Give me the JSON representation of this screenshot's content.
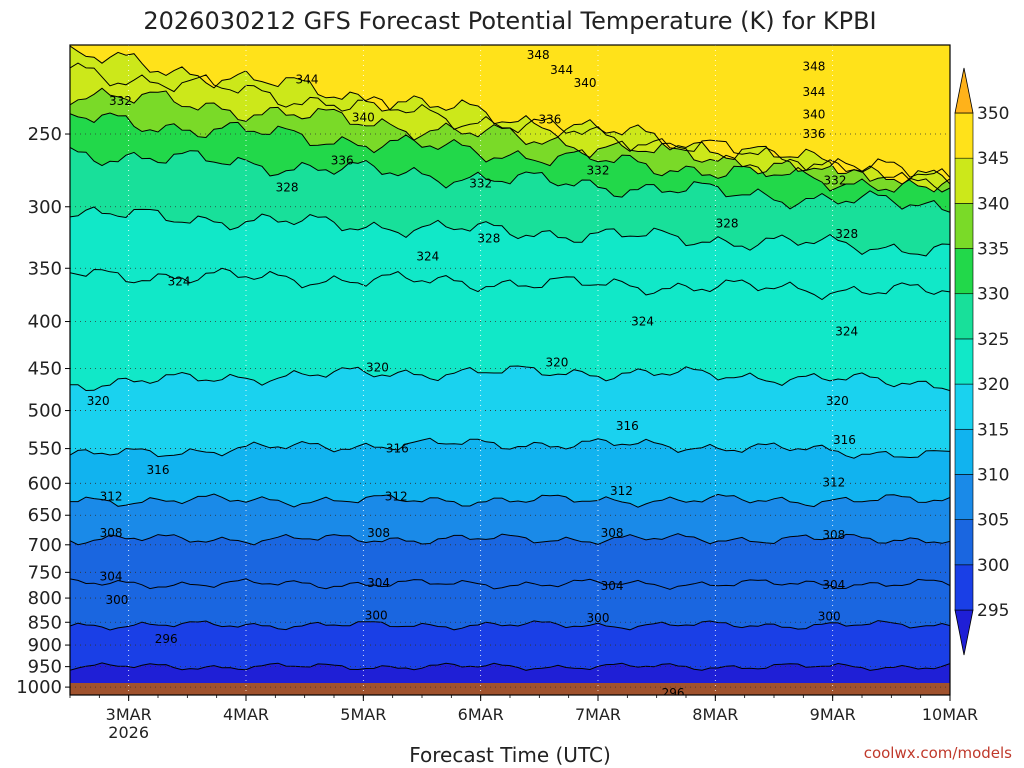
{
  "chart_data": {
    "type": "heatmap",
    "title": "2026030212 GFS Forecast Potential Temperature (K) for KPBI",
    "xlabel": "Forecast Time (UTC)",
    "ylabel": "",
    "x_ticks": [
      {
        "label": "3MAR",
        "sub": "2026",
        "day": 3
      },
      {
        "label": "4MAR",
        "sub": "",
        "day": 4
      },
      {
        "label": "5MAR",
        "sub": "",
        "day": 5
      },
      {
        "label": "6MAR",
        "sub": "",
        "day": 6
      },
      {
        "label": "7MAR",
        "sub": "",
        "day": 7
      },
      {
        "label": "8MAR",
        "sub": "",
        "day": 8
      },
      {
        "label": "9MAR",
        "sub": "",
        "day": 9
      },
      {
        "label": "10MAR",
        "sub": "",
        "day": 10
      }
    ],
    "x_range_days": [
      2.5,
      10.0
    ],
    "y_ticks": [
      "250",
      "300",
      "350",
      "400",
      "450",
      "500",
      "550",
      "600",
      "650",
      "700",
      "750",
      "800",
      "850",
      "900",
      "950",
      "1000"
    ],
    "y_range": [
      1020,
      200
    ],
    "colorbar": {
      "levels": [
        "295",
        "300",
        "305",
        "310",
        "315",
        "320",
        "325",
        "330",
        "335",
        "340",
        "345",
        "350"
      ],
      "colors": [
        "#1f1fd6",
        "#1a3fe6",
        "#1a66e0",
        "#1a8ae8",
        "#11b3ef",
        "#1ad2ef",
        "#11e8c8",
        "#18e09a",
        "#22d84a",
        "#7ada28",
        "#cce81a",
        "#ffe21a",
        "#ffb21a"
      ]
    },
    "contour_levels": [
      {
        "value": 296,
        "p": 950
      },
      {
        "value": 300,
        "p": 856
      },
      {
        "value": 304,
        "p": 772
      },
      {
        "value": 308,
        "p": 690
      },
      {
        "value": 312,
        "p": 626
      },
      {
        "value": 316,
        "p": 560
      },
      {
        "value": 320,
        "p": 468
      },
      {
        "value": 324,
        "p": 355
      },
      {
        "value": 328,
        "p": 305
      },
      {
        "value": 332,
        "p": 262
      },
      {
        "value": 336,
        "p": 240
      },
      {
        "value": 340,
        "p": 225
      },
      {
        "value": 344,
        "p": 213
      },
      {
        "value": 348,
        "p": 205
      }
    ],
    "contour_labels": [
      {
        "text": "332",
        "x": 2.93,
        "p": 230
      },
      {
        "text": "344",
        "x": 4.52,
        "p": 218
      },
      {
        "text": "348",
        "x": 6.49,
        "p": 205
      },
      {
        "text": "344",
        "x": 6.69,
        "p": 213
      },
      {
        "text": "340",
        "x": 6.89,
        "p": 220
      },
      {
        "text": "348",
        "x": 8.84,
        "p": 211
      },
      {
        "text": "344",
        "x": 8.84,
        "p": 225
      },
      {
        "text": "340",
        "x": 8.84,
        "p": 238
      },
      {
        "text": "336",
        "x": 8.84,
        "p": 250
      },
      {
        "text": "340",
        "x": 5.0,
        "p": 240
      },
      {
        "text": "336",
        "x": 6.59,
        "p": 241
      },
      {
        "text": "336",
        "x": 4.82,
        "p": 267
      },
      {
        "text": "332",
        "x": 6.0,
        "p": 283
      },
      {
        "text": "332",
        "x": 7.0,
        "p": 274
      },
      {
        "text": "332",
        "x": 9.02,
        "p": 281
      },
      {
        "text": "328",
        "x": 4.35,
        "p": 286
      },
      {
        "text": "328",
        "x": 6.07,
        "p": 325
      },
      {
        "text": "328",
        "x": 8.1,
        "p": 313
      },
      {
        "text": "328",
        "x": 9.12,
        "p": 321
      },
      {
        "text": "324",
        "x": 3.43,
        "p": 362
      },
      {
        "text": "324",
        "x": 5.55,
        "p": 340
      },
      {
        "text": "324",
        "x": 7.38,
        "p": 400
      },
      {
        "text": "324",
        "x": 9.12,
        "p": 410
      },
      {
        "text": "320",
        "x": 2.74,
        "p": 488
      },
      {
        "text": "320",
        "x": 5.12,
        "p": 449
      },
      {
        "text": "320",
        "x": 6.65,
        "p": 443
      },
      {
        "text": "320",
        "x": 9.04,
        "p": 488
      },
      {
        "text": "316",
        "x": 3.25,
        "p": 580
      },
      {
        "text": "316",
        "x": 5.29,
        "p": 550
      },
      {
        "text": "316",
        "x": 7.25,
        "p": 520
      },
      {
        "text": "316",
        "x": 9.1,
        "p": 538
      },
      {
        "text": "312",
        "x": 2.85,
        "p": 620
      },
      {
        "text": "312",
        "x": 5.28,
        "p": 620
      },
      {
        "text": "312",
        "x": 7.2,
        "p": 612
      },
      {
        "text": "312",
        "x": 9.01,
        "p": 599
      },
      {
        "text": "308",
        "x": 2.85,
        "p": 680
      },
      {
        "text": "308",
        "x": 5.13,
        "p": 680
      },
      {
        "text": "308",
        "x": 7.12,
        "p": 680
      },
      {
        "text": "308",
        "x": 9.01,
        "p": 683
      },
      {
        "text": "304",
        "x": 2.85,
        "p": 758
      },
      {
        "text": "304",
        "x": 5.13,
        "p": 770
      },
      {
        "text": "304",
        "x": 7.12,
        "p": 776
      },
      {
        "text": "304",
        "x": 9.01,
        "p": 774
      },
      {
        "text": "300",
        "x": 2.9,
        "p": 804
      },
      {
        "text": "300",
        "x": 5.11,
        "p": 836
      },
      {
        "text": "300",
        "x": 7.0,
        "p": 841
      },
      {
        "text": "300",
        "x": 8.97,
        "p": 838
      },
      {
        "text": "296",
        "x": 3.32,
        "p": 886
      },
      {
        "text": "296",
        "x": 7.64,
        "p": 1015
      }
    ],
    "grid": true
  },
  "footer": {
    "credit": "coolwx.com/models"
  }
}
